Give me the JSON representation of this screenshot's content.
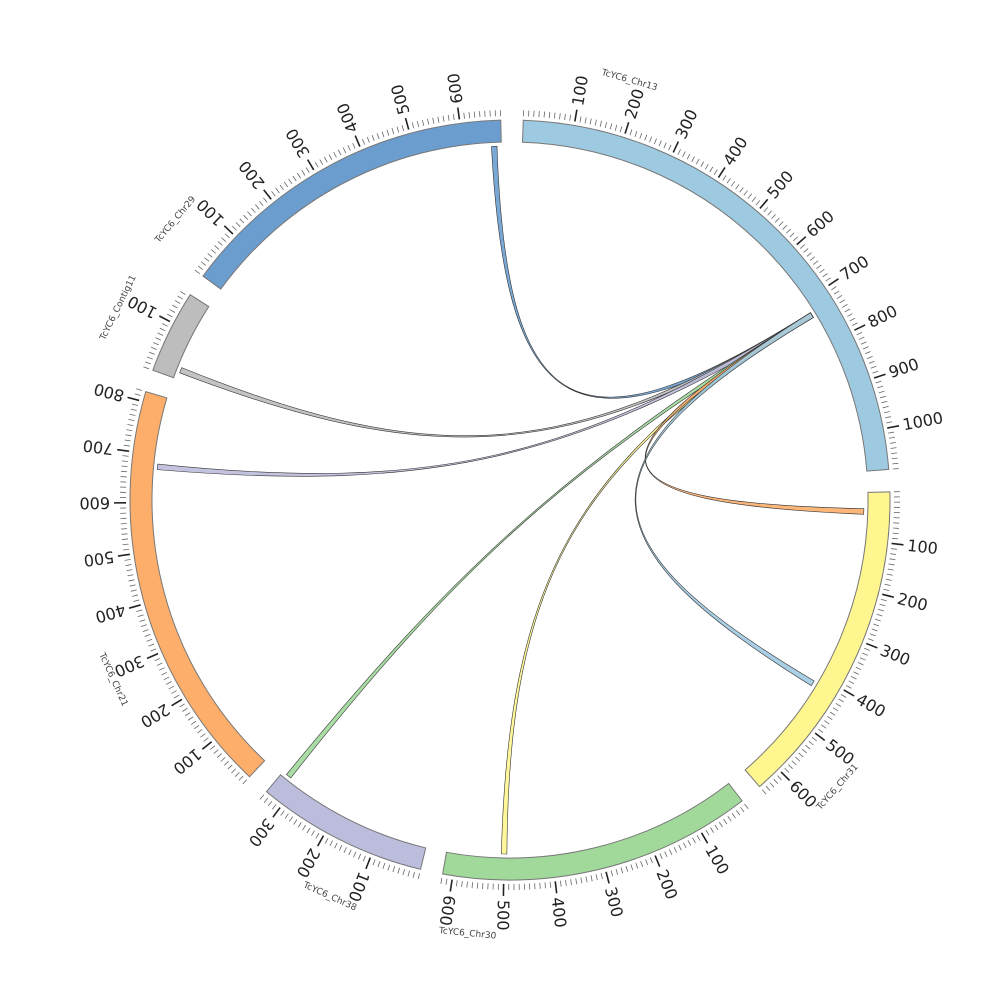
{
  "chart_data": {
    "type": "chord",
    "chromosomes": [
      {
        "id": "chr13",
        "label": "TcYC6_Chr13",
        "length": 1080,
        "color": "#9ecae1"
      },
      {
        "id": "chr31",
        "label": "TcYC6_Chr31",
        "length": 650,
        "color": "#fff68f"
      },
      {
        "id": "chr30",
        "label": "TcYC6_Chr30",
        "length": 620,
        "color": "#a1d99b"
      },
      {
        "id": "chr38",
        "label": "TcYC6_Chr38",
        "length": 340,
        "color": "#bcbddc"
      },
      {
        "id": "chr21",
        "label": "TcYC6_Chr21",
        "length": 820,
        "color": "#fdae6b"
      },
      {
        "id": "contig11",
        "label": "TcYC6_Contig11",
        "length": 165,
        "color": "#bdbdbd"
      },
      {
        "id": "chr29",
        "label": "TcYC6_Chr29",
        "length": 680,
        "color": "#6b9ecf"
      }
    ],
    "links": [
      {
        "source": "chr13",
        "source_pos": 732,
        "target": "chr29",
        "target_pos": 665,
        "color": "#6b9ecf"
      },
      {
        "source": "chr13",
        "source_pos": 732,
        "target": "contig11",
        "target_pos": 20,
        "color": "#bdbdbd"
      },
      {
        "source": "chr13",
        "source_pos": 732,
        "target": "chr21",
        "target_pos": 675,
        "color": "#bcbddc"
      },
      {
        "source": "chr13",
        "source_pos": 732,
        "target": "chr38",
        "target_pos": 325,
        "color": "#a1d99b"
      },
      {
        "source": "chr13",
        "source_pos": 732,
        "target": "chr30",
        "target_pos": 500,
        "color": "#fff68f"
      },
      {
        "source": "chr13",
        "source_pos": 732,
        "target": "chr31",
        "target_pos": 40,
        "color": "#fdae6b"
      },
      {
        "source": "chr13",
        "source_pos": 732,
        "target": "chr31",
        "target_pos": 420,
        "color": "#9ecae1"
      }
    ],
    "tick_labels": [
      "100",
      "200",
      "300",
      "400",
      "500",
      "600",
      "700",
      "800",
      "900",
      "1000"
    ]
  }
}
